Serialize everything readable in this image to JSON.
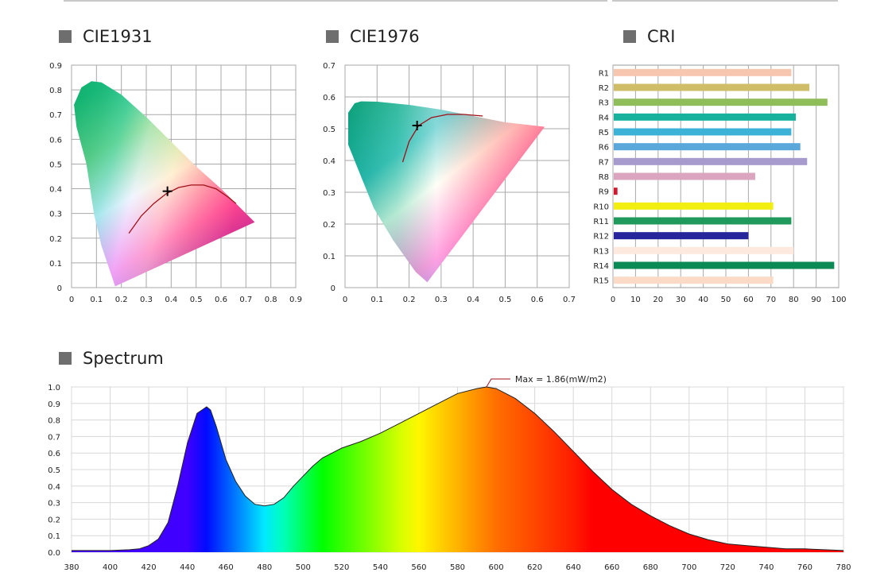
{
  "sections": {
    "cie1931": "CIE1931",
    "cie1976": "CIE1976",
    "cri": "CRI",
    "spectrum": "Spectrum"
  },
  "chart_data": [
    {
      "id": "cie1931",
      "type": "scatter",
      "title": "CIE1931",
      "xlim": [
        0,
        0.9
      ],
      "ylim": [
        0,
        0.9
      ],
      "x_ticks": [
        "0",
        "0.1",
        "0.2",
        "0.3",
        "0.4",
        "0.5",
        "0.6",
        "0.7",
        "0.8",
        "0.9"
      ],
      "y_ticks": [
        "0",
        "0.1",
        "0.2",
        "0.3",
        "0.4",
        "0.5",
        "0.6",
        "0.7",
        "0.8",
        "0.9"
      ],
      "grid": true,
      "point": {
        "x": 0.385,
        "y": 0.39
      },
      "planckian_locus": [
        [
          0.23,
          0.22
        ],
        [
          0.28,
          0.29
        ],
        [
          0.33,
          0.34
        ],
        [
          0.38,
          0.38
        ],
        [
          0.43,
          0.405
        ],
        [
          0.48,
          0.415
        ],
        [
          0.53,
          0.415
        ],
        [
          0.58,
          0.4
        ],
        [
          0.63,
          0.365
        ],
        [
          0.66,
          0.34
        ]
      ],
      "gamut": [
        [
          0.175,
          0.005
        ],
        [
          0.17,
          0.02
        ],
        [
          0.15,
          0.08
        ],
        [
          0.12,
          0.17
        ],
        [
          0.09,
          0.3
        ],
        [
          0.06,
          0.5
        ],
        [
          0.02,
          0.65
        ],
        [
          0.01,
          0.74
        ],
        [
          0.04,
          0.81
        ],
        [
          0.08,
          0.835
        ],
        [
          0.12,
          0.83
        ],
        [
          0.2,
          0.78
        ],
        [
          0.3,
          0.69
        ],
        [
          0.4,
          0.59
        ],
        [
          0.5,
          0.49
        ],
        [
          0.6,
          0.4
        ],
        [
          0.735,
          0.265
        ]
      ]
    },
    {
      "id": "cie1976",
      "type": "scatter",
      "title": "CIE1976",
      "xlim": [
        0,
        0.7
      ],
      "ylim": [
        0,
        0.7
      ],
      "x_ticks": [
        "0",
        "0.1",
        "0.2",
        "0.3",
        "0.4",
        "0.5",
        "0.6",
        "0.7"
      ],
      "y_ticks": [
        "0",
        "0.1",
        "0.2",
        "0.3",
        "0.4",
        "0.5",
        "0.6",
        "0.7"
      ],
      "grid": true,
      "point": {
        "x": 0.225,
        "y": 0.51
      },
      "planckian_locus": [
        [
          0.18,
          0.395
        ],
        [
          0.2,
          0.46
        ],
        [
          0.23,
          0.51
        ],
        [
          0.27,
          0.535
        ],
        [
          0.32,
          0.545
        ],
        [
          0.37,
          0.545
        ],
        [
          0.43,
          0.54
        ]
      ],
      "gamut": [
        [
          0.257,
          0.017
        ],
        [
          0.22,
          0.05
        ],
        [
          0.15,
          0.15
        ],
        [
          0.09,
          0.25
        ],
        [
          0.05,
          0.35
        ],
        [
          0.01,
          0.45
        ],
        [
          0.01,
          0.55
        ],
        [
          0.03,
          0.58
        ],
        [
          0.05,
          0.586
        ],
        [
          0.1,
          0.585
        ],
        [
          0.2,
          0.575
        ],
        [
          0.3,
          0.56
        ],
        [
          0.4,
          0.54
        ],
        [
          0.5,
          0.52
        ],
        [
          0.623,
          0.506
        ]
      ]
    },
    {
      "id": "cri",
      "type": "bar",
      "title": "CRI",
      "orientation": "horizontal",
      "categories": [
        "R1",
        "R2",
        "R3",
        "R4",
        "R5",
        "R6",
        "R7",
        "R8",
        "R9",
        "R10",
        "R11",
        "R12",
        "R13",
        "R14",
        "R15"
      ],
      "values": [
        79,
        87,
        95,
        81,
        79,
        83,
        86,
        63,
        2,
        71,
        79,
        60,
        80,
        98,
        71
      ],
      "colors": [
        "#f7c6ae",
        "#cfbd6a",
        "#8fbd5a",
        "#17b19c",
        "#3cb2d6",
        "#5aa7dc",
        "#a69bcc",
        "#dba4bf",
        "#d0182f",
        "#f2ee12",
        "#1f9a5c",
        "#26259c",
        "#fde9de",
        "#0c8a56",
        "#fbdac6"
      ],
      "xlim": [
        0,
        100
      ],
      "x_ticks": [
        "0",
        "10",
        "20",
        "30",
        "40",
        "50",
        "60",
        "70",
        "80",
        "90",
        "100"
      ],
      "grid": true
    },
    {
      "id": "spectrum",
      "type": "area",
      "title": "Spectrum",
      "xlim": [
        380,
        780
      ],
      "ylim": [
        0,
        1.0
      ],
      "x_ticks": [
        "380",
        "400",
        "420",
        "440",
        "460",
        "480",
        "500",
        "520",
        "540",
        "560",
        "580",
        "600",
        "620",
        "640",
        "660",
        "680",
        "700",
        "720",
        "740",
        "760",
        "780"
      ],
      "y_ticks": [
        "0.0",
        "0.1",
        "0.2",
        "0.3",
        "0.4",
        "0.5",
        "0.6",
        "0.7",
        "0.8",
        "0.9",
        "1.0"
      ],
      "grid": true,
      "annotation": {
        "text": "Max = 1.86(mW/m2)",
        "x": 595,
        "y": 1.0
      },
      "x": [
        380,
        390,
        400,
        410,
        415,
        420,
        425,
        430,
        435,
        440,
        445,
        450,
        452,
        455,
        460,
        465,
        470,
        475,
        480,
        485,
        490,
        495,
        500,
        505,
        510,
        520,
        530,
        540,
        550,
        560,
        570,
        580,
        590,
        595,
        600,
        610,
        620,
        630,
        640,
        650,
        660,
        670,
        680,
        690,
        700,
        710,
        720,
        730,
        740,
        750,
        760,
        770,
        780
      ],
      "y": [
        0.01,
        0.01,
        0.01,
        0.015,
        0.02,
        0.04,
        0.08,
        0.18,
        0.4,
        0.66,
        0.84,
        0.88,
        0.86,
        0.76,
        0.56,
        0.43,
        0.34,
        0.29,
        0.28,
        0.29,
        0.33,
        0.4,
        0.46,
        0.52,
        0.57,
        0.63,
        0.67,
        0.72,
        0.78,
        0.84,
        0.9,
        0.96,
        0.99,
        1.0,
        0.99,
        0.93,
        0.84,
        0.73,
        0.61,
        0.49,
        0.38,
        0.29,
        0.22,
        0.16,
        0.11,
        0.075,
        0.05,
        0.04,
        0.03,
        0.02,
        0.02,
        0.015,
        0.01
      ]
    }
  ]
}
